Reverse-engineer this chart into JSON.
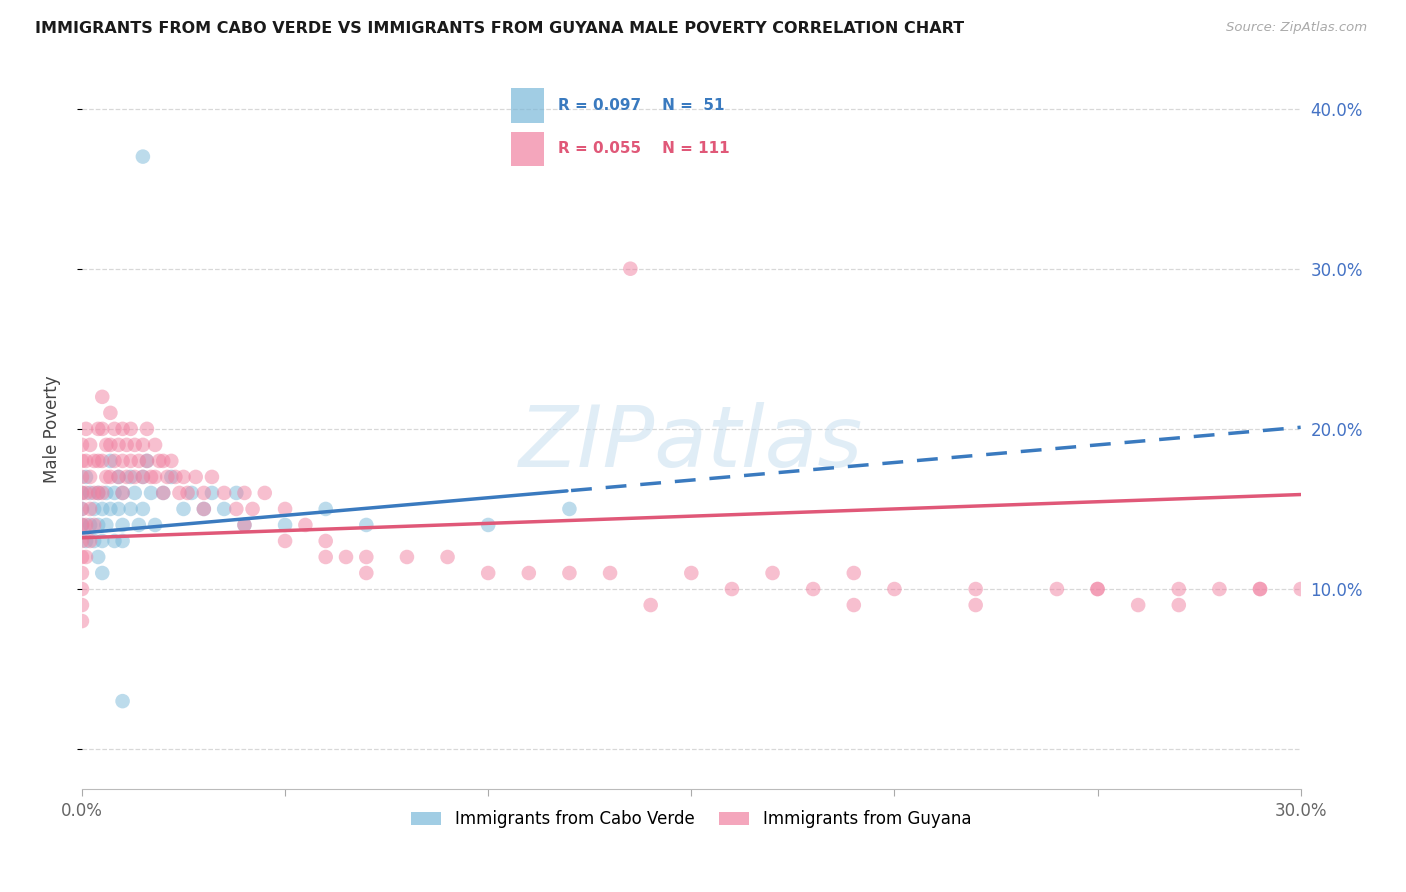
{
  "title": "IMMIGRANTS FROM CABO VERDE VS IMMIGRANTS FROM GUYANA MALE POVERTY CORRELATION CHART",
  "source": "Source: ZipAtlas.com",
  "ylabel": "Male Poverty",
  "xlim": [
    0.0,
    0.3
  ],
  "ylim": [
    -0.025,
    0.425
  ],
  "color_blue": "#7ab8d9",
  "color_pink": "#f080a0",
  "line_blue": "#3a7abf",
  "line_pink": "#e05878",
  "watermark_color": "#c8dff0",
  "grid_color": "#d8d8d8",
  "right_tick_color": "#4472c4",
  "title_fontsize": 11.5,
  "label_fontsize": 12,
  "source_fontsize": 9.5,
  "cabo_verde_x": [
    0.0,
    0.0,
    0.0,
    0.001,
    0.001,
    0.002,
    0.002,
    0.003,
    0.003,
    0.004,
    0.004,
    0.004,
    0.005,
    0.005,
    0.005,
    0.006,
    0.006,
    0.007,
    0.007,
    0.008,
    0.008,
    0.009,
    0.009,
    0.01,
    0.01,
    0.01,
    0.012,
    0.012,
    0.013,
    0.014,
    0.015,
    0.015,
    0.016,
    0.017,
    0.018,
    0.02,
    0.022,
    0.025,
    0.027,
    0.03,
    0.032,
    0.035,
    0.038,
    0.04,
    0.05,
    0.06,
    0.07,
    0.1,
    0.12,
    0.015,
    0.01
  ],
  "cabo_verde_y": [
    0.14,
    0.15,
    0.16,
    0.17,
    0.13,
    0.14,
    0.16,
    0.15,
    0.13,
    0.16,
    0.14,
    0.12,
    0.15,
    0.13,
    0.11,
    0.16,
    0.14,
    0.18,
    0.15,
    0.16,
    0.13,
    0.17,
    0.15,
    0.14,
    0.16,
    0.13,
    0.17,
    0.15,
    0.16,
    0.14,
    0.17,
    0.15,
    0.18,
    0.16,
    0.14,
    0.16,
    0.17,
    0.15,
    0.16,
    0.15,
    0.16,
    0.15,
    0.16,
    0.14,
    0.14,
    0.15,
    0.14,
    0.14,
    0.15,
    0.37,
    0.03
  ],
  "guyana_x": [
    0.0,
    0.0,
    0.0,
    0.0,
    0.0,
    0.0,
    0.0,
    0.0,
    0.0,
    0.0,
    0.0,
    0.0,
    0.001,
    0.001,
    0.001,
    0.001,
    0.001,
    0.002,
    0.002,
    0.002,
    0.002,
    0.003,
    0.003,
    0.003,
    0.004,
    0.004,
    0.004,
    0.005,
    0.005,
    0.005,
    0.005,
    0.006,
    0.006,
    0.007,
    0.007,
    0.007,
    0.008,
    0.008,
    0.009,
    0.009,
    0.01,
    0.01,
    0.01,
    0.011,
    0.011,
    0.012,
    0.012,
    0.013,
    0.013,
    0.014,
    0.015,
    0.015,
    0.016,
    0.016,
    0.017,
    0.018,
    0.018,
    0.019,
    0.02,
    0.02,
    0.021,
    0.022,
    0.023,
    0.024,
    0.025,
    0.026,
    0.028,
    0.03,
    0.032,
    0.035,
    0.038,
    0.04,
    0.042,
    0.045,
    0.05,
    0.055,
    0.06,
    0.065,
    0.07,
    0.08,
    0.09,
    0.1,
    0.11,
    0.12,
    0.13,
    0.135,
    0.15,
    0.16,
    0.17,
    0.18,
    0.19,
    0.2,
    0.22,
    0.24,
    0.25,
    0.26,
    0.27,
    0.28,
    0.29,
    0.3,
    0.14,
    0.19,
    0.22,
    0.25,
    0.27,
    0.29,
    0.03,
    0.04,
    0.05,
    0.06,
    0.07
  ],
  "guyana_y": [
    0.14,
    0.15,
    0.16,
    0.17,
    0.13,
    0.12,
    0.11,
    0.1,
    0.09,
    0.08,
    0.18,
    0.19,
    0.2,
    0.18,
    0.16,
    0.14,
    0.12,
    0.19,
    0.17,
    0.15,
    0.13,
    0.18,
    0.16,
    0.14,
    0.2,
    0.18,
    0.16,
    0.22,
    0.2,
    0.18,
    0.16,
    0.19,
    0.17,
    0.21,
    0.19,
    0.17,
    0.2,
    0.18,
    0.19,
    0.17,
    0.2,
    0.18,
    0.16,
    0.19,
    0.17,
    0.2,
    0.18,
    0.19,
    0.17,
    0.18,
    0.19,
    0.17,
    0.2,
    0.18,
    0.17,
    0.19,
    0.17,
    0.18,
    0.18,
    0.16,
    0.17,
    0.18,
    0.17,
    0.16,
    0.17,
    0.16,
    0.17,
    0.16,
    0.17,
    0.16,
    0.15,
    0.16,
    0.15,
    0.16,
    0.15,
    0.14,
    0.13,
    0.12,
    0.12,
    0.12,
    0.12,
    0.11,
    0.11,
    0.11,
    0.11,
    0.3,
    0.11,
    0.1,
    0.11,
    0.1,
    0.11,
    0.1,
    0.1,
    0.1,
    0.1,
    0.09,
    0.1,
    0.1,
    0.1,
    0.1,
    0.09,
    0.09,
    0.09,
    0.1,
    0.09,
    0.1,
    0.15,
    0.14,
    0.13,
    0.12,
    0.11
  ]
}
